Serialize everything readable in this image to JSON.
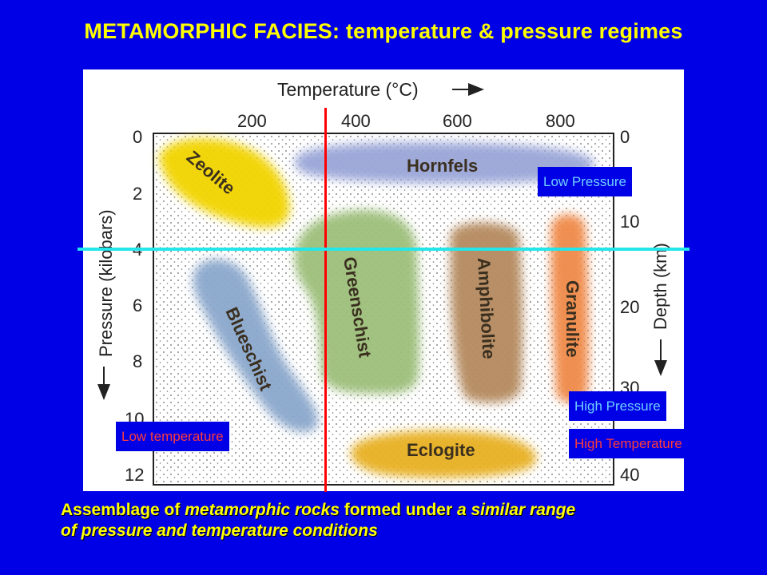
{
  "title": "METAMORPHIC  FACIES: temperature & pressure regimes",
  "diagram": {
    "x_axis_title": "Temperature (°C)",
    "x_ticks": [
      "200",
      "400",
      "600",
      "800"
    ],
    "y_left_title": "Pressure (kilobars)",
    "y_left_ticks": [
      "0",
      "2",
      "4",
      "6",
      "8",
      "10",
      "12"
    ],
    "y_right_title": "Depth (km)",
    "y_right_ticks": [
      "0",
      "10",
      "20",
      "30",
      "40"
    ],
    "facies": [
      {
        "name": "Zeolite",
        "color": "#f2d400"
      },
      {
        "name": "Hornfels",
        "color": "#9aa6d8"
      },
      {
        "name": "Blueschist",
        "color": "#8aa7cc"
      },
      {
        "name": "Greenschist",
        "color": "#9dbf7a"
      },
      {
        "name": "Amphibolite",
        "color": "#b58a5e"
      },
      {
        "name": "Granulite",
        "color": "#f08a4a"
      },
      {
        "name": "Eclogite",
        "color": "#e8b020"
      }
    ]
  },
  "callouts": {
    "low_pressure": "Low Pressure",
    "high_pressure": "High Pressure",
    "low_temperature": "Low temperature",
    "high_temperature": "High Temperature"
  },
  "caption": {
    "p1": "Assemblage of ",
    "p2": "metamorphic rocks",
    "p3": " formed under ",
    "p4": "a similar range",
    "p5": "of ",
    "p6": "pressure and temperature conditions"
  }
}
